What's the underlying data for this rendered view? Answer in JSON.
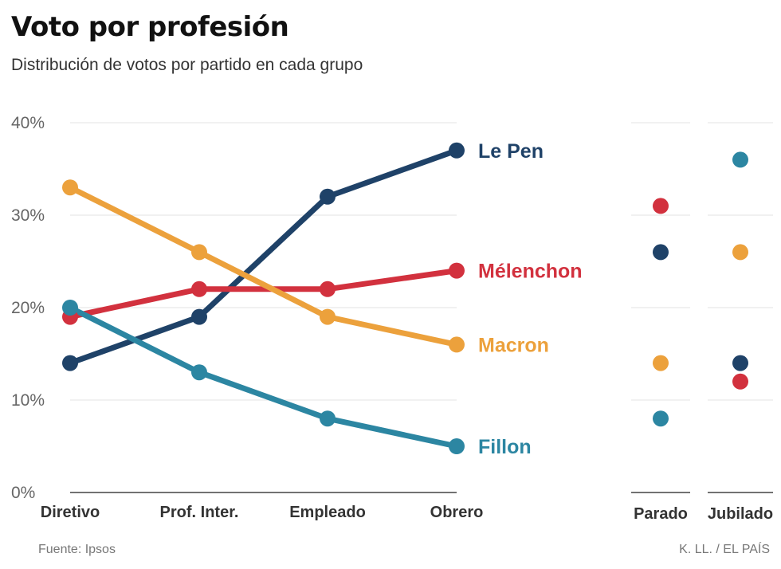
{
  "header": {
    "title": "Voto por profesión",
    "subtitle": "Distribución de votos por partido en cada grupo"
  },
  "footer": {
    "source": "Fuente: Ipsos",
    "credit": "K. LL. / EL PAÍS"
  },
  "colors": {
    "le_pen": "#1f4268",
    "melenchon": "#d2313e",
    "macron": "#eca13c",
    "fillon": "#2c86a2",
    "grid": "#e3e3e3",
    "axis": "#444444",
    "tick": "#666666"
  },
  "chart_data": [
    {
      "type": "line",
      "categories": [
        "Diretivo",
        "Prof. Inter.",
        "Empleado",
        "Obrero"
      ],
      "ylim": [
        0,
        40
      ],
      "yticks": [
        "0%",
        "10%",
        "20%",
        "30%",
        "40%"
      ],
      "grid": true,
      "legend": "direct labels at line ends",
      "series": [
        {
          "name": "Le Pen",
          "key": "le_pen",
          "values": [
            14,
            19,
            32,
            37
          ]
        },
        {
          "name": "Mélenchon",
          "key": "melenchon",
          "values": [
            19,
            22,
            22,
            24
          ]
        },
        {
          "name": "Macron",
          "key": "macron",
          "values": [
            33,
            26,
            19,
            16
          ]
        },
        {
          "name": "Fillon",
          "key": "fillon",
          "values": [
            20,
            13,
            8,
            5
          ]
        }
      ]
    },
    {
      "type": "scatter",
      "categories": [
        "Parado",
        "Jubilado"
      ],
      "ylim": [
        0,
        40
      ],
      "grid": true,
      "series": [
        {
          "key": "le_pen",
          "values": [
            26,
            14
          ]
        },
        {
          "key": "melenchon",
          "values": [
            31,
            12
          ]
        },
        {
          "key": "macron",
          "values": [
            14,
            26
          ]
        },
        {
          "key": "fillon",
          "values": [
            8,
            36
          ]
        }
      ]
    }
  ]
}
